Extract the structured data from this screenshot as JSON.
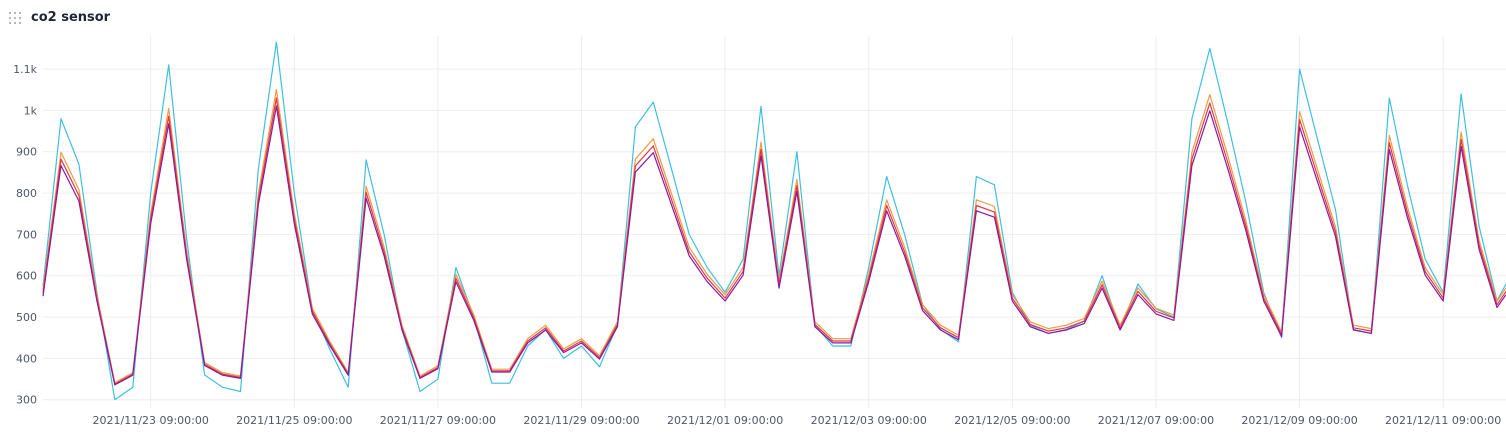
{
  "panel": {
    "title": "co2 sensor",
    "drag_icon": "drag-handle-icon"
  },
  "chart_data": {
    "type": "line",
    "title": "co2 sensor",
    "xlabel": "",
    "ylabel": "",
    "x_ticks": [
      "2021/11/23 09:00:00",
      "2021/11/25 09:00:00",
      "2021/11/27 09:00:00",
      "2021/11/29 09:00:00",
      "2021/12/01 09:00:00",
      "2021/12/03 09:00:00",
      "2021/12/05 09:00:00",
      "2021/12/07 09:00:00",
      "2021/12/09 09:00:00",
      "2021/12/11 09:00:00"
    ],
    "y_ticks": [
      {
        "value": 300,
        "label": "300"
      },
      {
        "value": 400,
        "label": "400"
      },
      {
        "value": 500,
        "label": "500"
      },
      {
        "value": 600,
        "label": "600"
      },
      {
        "value": 700,
        "label": "700"
      },
      {
        "value": 800,
        "label": "800"
      },
      {
        "value": 900,
        "label": "900"
      },
      {
        "value": 1000,
        "label": "1k"
      },
      {
        "value": 1100,
        "label": "1.1k"
      }
    ],
    "ylim": [
      280,
      1180
    ],
    "xlim": [
      "2021/11/21 21:00:00",
      "2021/12/12 06:00:00"
    ],
    "grid": true,
    "legend": "none",
    "colors": {
      "cyan": "#3fbfe0",
      "orange": "#f09a4a",
      "red": "#e0393e",
      "purple": "#8a18a8"
    },
    "series": [
      {
        "color": "#3fbfe0",
        "x": [
          "2021/11/21 21:00",
          "2021/11/22 03:00",
          "2021/11/22 09:00",
          "2021/11/22 15:00",
          "2021/11/22 21:00",
          "2021/11/23 03:00",
          "2021/11/23 09:00",
          "2021/11/23 15:00",
          "2021/11/23 21:00",
          "2021/11/24 03:00",
          "2021/11/24 09:00",
          "2021/11/24 15:00",
          "2021/11/24 21:00",
          "2021/11/25 03:00",
          "2021/11/25 09:00",
          "2021/11/25 15:00",
          "2021/11/25 21:00",
          "2021/11/26 03:00",
          "2021/11/26 09:00",
          "2021/11/26 15:00",
          "2021/11/26 21:00",
          "2021/11/27 03:00",
          "2021/11/27 09:00",
          "2021/11/27 15:00",
          "2021/11/27 21:00",
          "2021/11/28 03:00",
          "2021/11/28 09:00",
          "2021/11/28 15:00",
          "2021/11/28 21:00",
          "2021/11/29 03:00",
          "2021/11/29 09:00",
          "2021/11/29 15:00",
          "2021/11/29 21:00",
          "2021/11/30 03:00",
          "2021/11/30 09:00",
          "2021/11/30 15:00",
          "2021/11/30 21:00",
          "2021/12/01 03:00",
          "2021/12/01 09:00",
          "2021/12/01 15:00",
          "2021/12/01 21:00",
          "2021/12/02 03:00",
          "2021/12/02 09:00",
          "2021/12/02 15:00",
          "2021/12/02 21:00",
          "2021/12/03 03:00",
          "2021/12/03 09:00",
          "2021/12/03 15:00",
          "2021/12/03 21:00",
          "2021/12/04 03:00",
          "2021/12/04 09:00",
          "2021/12/04 15:00",
          "2021/12/04 21:00",
          "2021/12/05 03:00",
          "2021/12/05 09:00",
          "2021/12/05 15:00",
          "2021/12/05 21:00",
          "2021/12/06 03:00",
          "2021/12/06 09:00",
          "2021/12/06 15:00",
          "2021/12/06 21:00",
          "2021/12/07 03:00",
          "2021/12/07 09:00",
          "2021/12/07 15:00",
          "2021/12/07 21:00",
          "2021/12/08 03:00",
          "2021/12/08 09:00",
          "2021/12/08 15:00",
          "2021/12/08 21:00",
          "2021/12/09 03:00",
          "2021/12/09 09:00",
          "2021/12/09 15:00",
          "2021/12/09 21:00",
          "2021/12/10 03:00",
          "2021/12/10 09:00",
          "2021/12/10 15:00",
          "2021/12/10 21:00",
          "2021/12/11 03:00",
          "2021/12/11 09:00",
          "2021/12/11 15:00",
          "2021/12/11 21:00",
          "2021/12/12 03:00",
          "2021/12/12 06:00"
        ],
        "y": [
          575,
          980,
          870,
          560,
          300,
          330,
          800,
          1110,
          690,
          360,
          330,
          320,
          860,
          1165,
          800,
          520,
          420,
          330,
          880,
          700,
          470,
          320,
          350,
          620,
          500,
          340,
          340,
          430,
          470,
          400,
          430,
          380,
          480,
          960,
          1020,
          860,
          700,
          620,
          560,
          640,
          1010,
          600,
          900,
          480,
          430,
          430,
          620,
          840,
          700,
          530,
          470,
          440,
          840,
          820,
          560,
          480,
          460,
          470,
          490,
          600,
          470,
          580,
          520,
          500,
          980,
          1150,
          970,
          780,
          560,
          450,
          1100,
          930,
          760,
          470,
          460,
          1030,
          820,
          640,
          560,
          1040,
          720,
          540,
          580
        ]
      }
    ]
  }
}
